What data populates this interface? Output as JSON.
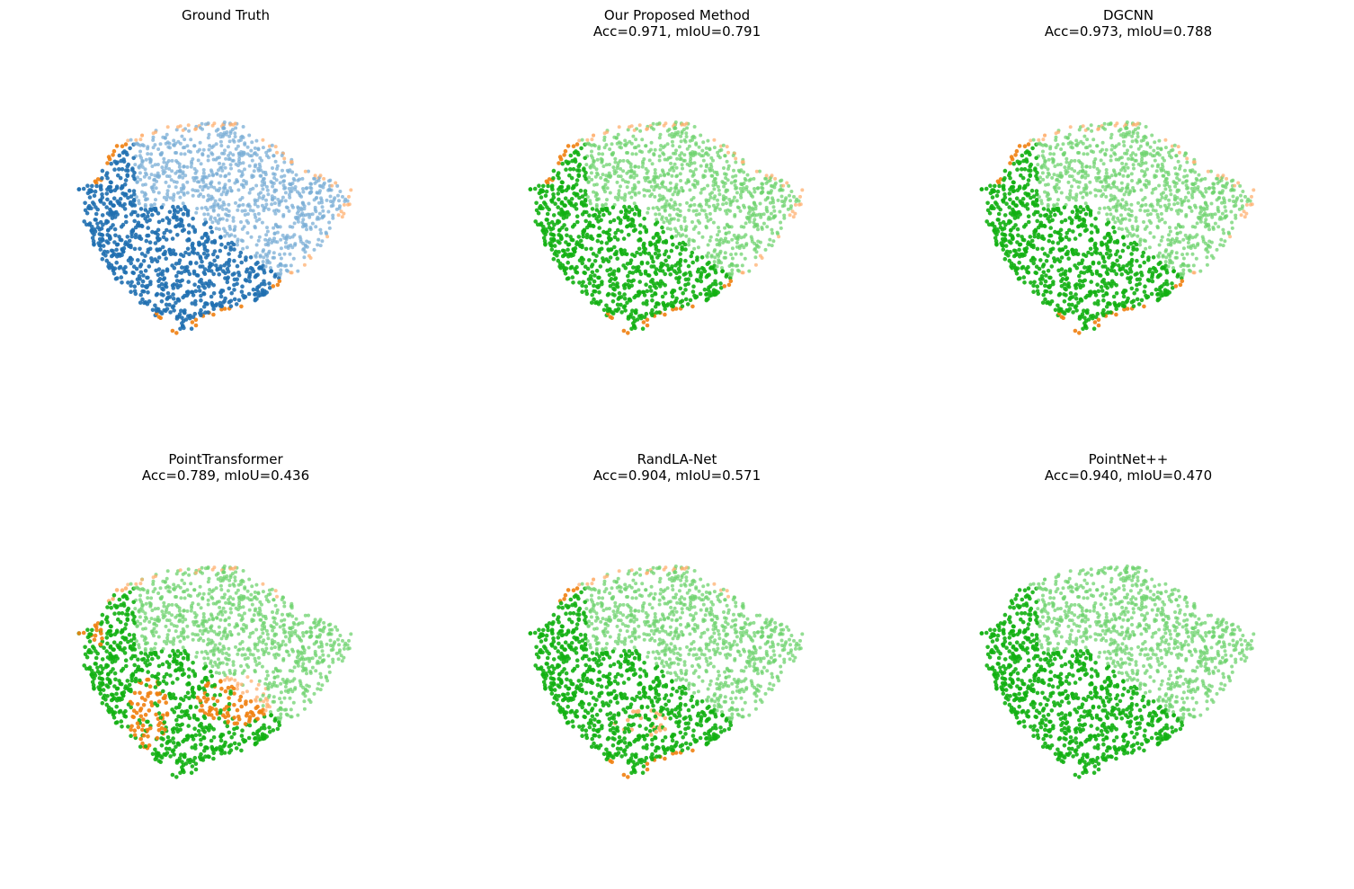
{
  "figure": {
    "colors": {
      "blue_dark": "#1f6fb0",
      "blue_light": "#7aaed6",
      "orange_dark": "#f07f10",
      "orange_light": "#ffb070",
      "green_dark": "#12b012",
      "green_light": "#6fd36f"
    },
    "panels": [
      {
        "title": "Ground Truth",
        "metrics": "",
        "scheme": "ground_truth"
      },
      {
        "title": "Our Proposed Method",
        "metrics": "Acc=0.971, mIoU=0.791",
        "scheme": "proposed"
      },
      {
        "title": "DGCNN",
        "metrics": "Acc=0.973, mIoU=0.788",
        "scheme": "dgcnn"
      },
      {
        "title": "PointTransformer",
        "metrics": "Acc=0.789, mIoU=0.436",
        "scheme": "pointtransformer"
      },
      {
        "title": "RandLA-Net",
        "metrics": "Acc=0.904, mIoU=0.571",
        "scheme": "randlanet"
      },
      {
        "title": "PointNet++",
        "metrics": "Acc=0.940, mIoU=0.470",
        "scheme": "pointnetpp"
      }
    ]
  }
}
